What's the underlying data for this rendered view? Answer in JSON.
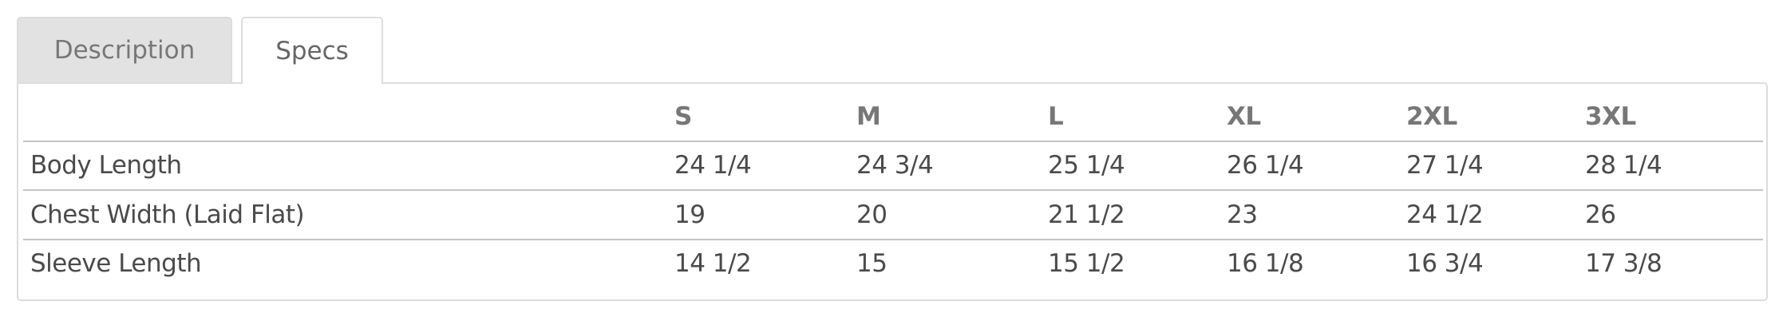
{
  "tabs": [
    {
      "label": "Description",
      "active": false
    },
    {
      "label": "Specs",
      "active": true
    }
  ],
  "specs": {
    "sizes": [
      "S",
      "M",
      "L",
      "XL",
      "2XL",
      "3XL"
    ],
    "rows": [
      {
        "label": "Body Length",
        "values": [
          "24 1/4",
          "24 3/4",
          "25 1/4",
          "26 1/4",
          "27 1/4",
          "28 1/4"
        ]
      },
      {
        "label": "Chest Width (Laid Flat)",
        "values": [
          "19",
          "20",
          "21 1/2",
          "23",
          "24 1/2",
          "26"
        ]
      },
      {
        "label": "Sleeve Length",
        "values": [
          "14 1/2",
          "15",
          "15 1/2",
          "16 1/8",
          "16 3/4",
          "17 3/8"
        ]
      }
    ]
  }
}
